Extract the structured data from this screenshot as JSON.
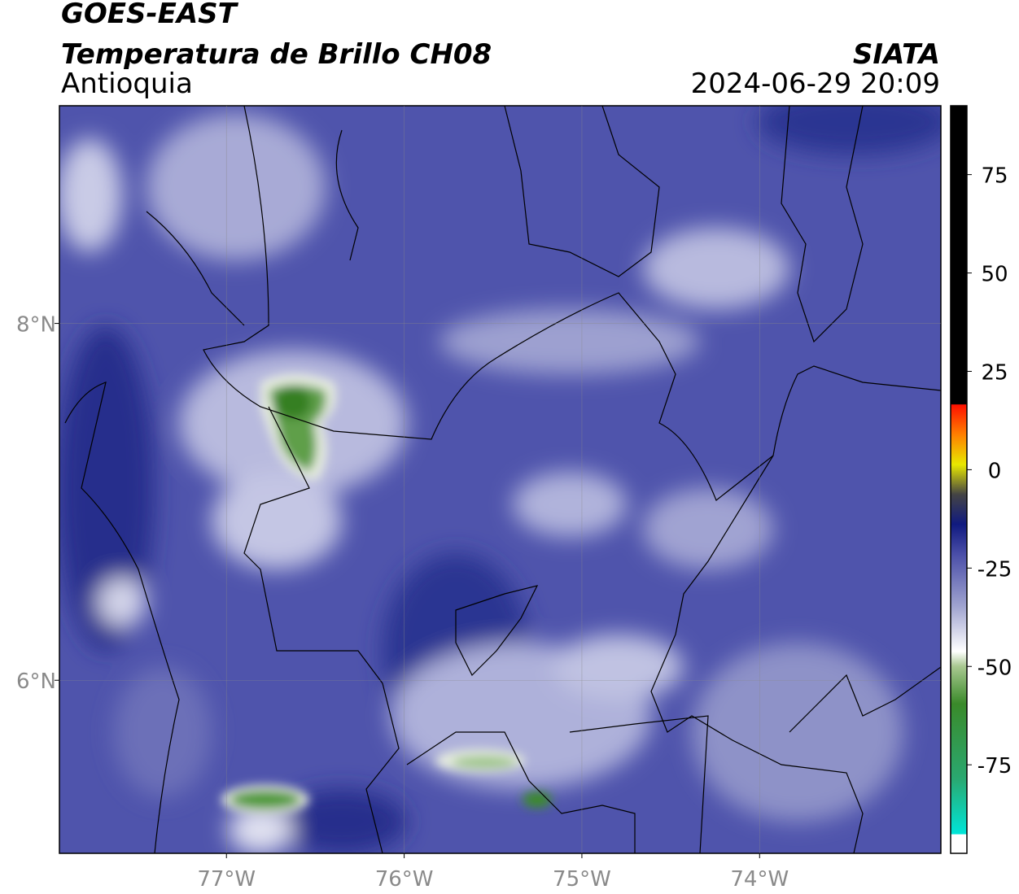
{
  "header": {
    "title": "GOES-EAST",
    "subtitle": "Temperatura de Brillo CH08",
    "region": "Antioquia",
    "source": "SIATA",
    "datetime": "2024-06-29 20:09"
  },
  "map": {
    "xlim": [
      -77.94,
      -72.98
    ],
    "ylim": [
      5.03,
      9.22
    ],
    "xticks": [
      {
        "value": -77,
        "label": "77°W"
      },
      {
        "value": -76,
        "label": "76°W"
      },
      {
        "value": -75,
        "label": "75°W"
      },
      {
        "value": -74,
        "label": "74°W"
      }
    ],
    "yticks": [
      {
        "value": 6,
        "label": "6°N"
      },
      {
        "value": 8,
        "label": "8°N"
      }
    ],
    "grid": true
  },
  "colorbar": {
    "lim": [
      -97.5,
      92.5
    ],
    "ticks": [
      75,
      50,
      25,
      0,
      -25,
      -50,
      -75
    ]
  }
}
